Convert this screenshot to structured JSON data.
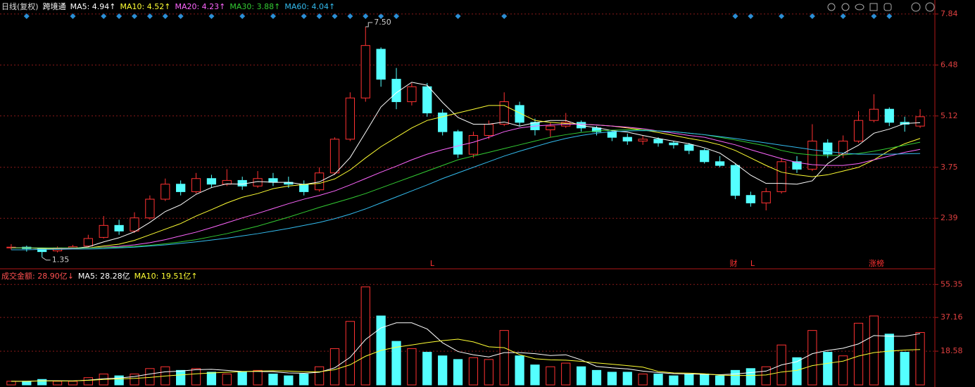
{
  "chart_data": [
    {
      "type": "candlestick",
      "title": "日线(复权)",
      "subtitle": "跨境通",
      "up_color": "#ff3232",
      "down_color": "#54ffff",
      "open": [
        1.6,
        1.62,
        1.58,
        1.52,
        1.6,
        1.65,
        1.88,
        2.2,
        2.05,
        2.4,
        2.9,
        3.3,
        3.1,
        3.45,
        3.3,
        3.4,
        3.25,
        3.45,
        3.35,
        3.3,
        3.15,
        3.6,
        4.5,
        5.6,
        6.9,
        6.1,
        5.5,
        5.9,
        5.2,
        4.7,
        4.1,
        4.6,
        4.9,
        5.4,
        4.95,
        4.75,
        4.85,
        4.95,
        4.8,
        4.7,
        4.55,
        4.45,
        4.5,
        4.4,
        4.35,
        4.2,
        3.9,
        3.8,
        3.0,
        2.8,
        3.1,
        3.9,
        3.7,
        4.4,
        4.1,
        4.45,
        5.0,
        5.3,
        4.95,
        4.85
      ],
      "close": [
        1.62,
        1.58,
        1.5,
        1.6,
        1.63,
        1.85,
        2.2,
        2.05,
        2.4,
        2.9,
        3.3,
        3.1,
        3.45,
        3.3,
        3.4,
        3.25,
        3.45,
        3.35,
        3.3,
        3.1,
        3.6,
        4.5,
        5.6,
        7.0,
        6.1,
        5.5,
        5.9,
        5.2,
        4.7,
        4.1,
        4.6,
        4.9,
        5.5,
        4.95,
        4.75,
        4.85,
        4.95,
        4.8,
        4.7,
        4.55,
        4.45,
        4.5,
        4.4,
        4.35,
        4.2,
        3.9,
        3.8,
        3.0,
        2.8,
        3.1,
        3.9,
        3.7,
        4.45,
        4.1,
        4.45,
        5.0,
        5.3,
        4.95,
        4.9,
        5.1
      ],
      "low": [
        1.55,
        1.5,
        1.35,
        1.48,
        1.57,
        1.62,
        1.85,
        1.95,
        2.0,
        2.35,
        2.85,
        3.0,
        3.05,
        3.2,
        3.25,
        3.15,
        3.2,
        3.25,
        3.2,
        3.0,
        3.1,
        3.55,
        4.45,
        5.5,
        5.9,
        5.3,
        5.4,
        5.1,
        4.6,
        4.0,
        4.0,
        4.5,
        4.85,
        4.85,
        4.6,
        4.55,
        4.8,
        4.7,
        4.6,
        4.45,
        4.35,
        4.35,
        4.3,
        4.25,
        4.1,
        3.85,
        3.75,
        2.9,
        2.7,
        2.6,
        3.05,
        3.6,
        3.65,
        4.0,
        4.0,
        4.4,
        4.95,
        4.85,
        4.7,
        4.8
      ],
      "high": [
        1.7,
        1.66,
        1.6,
        1.64,
        1.68,
        1.95,
        2.45,
        2.35,
        2.55,
        3.0,
        3.45,
        3.4,
        3.6,
        3.55,
        3.7,
        3.5,
        3.65,
        3.6,
        3.5,
        3.4,
        3.75,
        4.55,
        5.75,
        7.5,
        6.95,
        6.4,
        6.0,
        6.0,
        5.3,
        4.75,
        4.7,
        5.0,
        5.75,
        5.5,
        5.05,
        4.95,
        5.2,
        5.0,
        4.85,
        4.75,
        4.65,
        4.6,
        4.55,
        4.45,
        4.4,
        4.25,
        4.05,
        3.85,
        3.1,
        3.2,
        4.0,
        4.05,
        4.9,
        4.5,
        4.6,
        5.25,
        5.7,
        5.35,
        5.1,
        5.3
      ],
      "annotations": [
        {
          "text": "7.50",
          "value": 7.5
        },
        {
          "text": "1.35",
          "value": 1.35
        }
      ],
      "event_labels": [
        "L",
        "财",
        "L",
        "涨榜"
      ],
      "ylim": [
        1.08,
        8.12
      ],
      "yticks": [
        7.84,
        6.48,
        5.12,
        3.75,
        2.39
      ],
      "grid": true,
      "series": [
        {
          "name": "MA5: 4.94↑",
          "color": "#ffffff",
          "values": [
            1.6,
            1.6,
            1.58,
            1.58,
            1.59,
            1.63,
            1.76,
            1.87,
            2.03,
            2.28,
            2.57,
            2.75,
            3.03,
            3.21,
            3.31,
            3.3,
            3.37,
            3.35,
            3.35,
            3.29,
            3.36,
            3.57,
            4.01,
            4.68,
            5.36,
            5.74,
            6.02,
            5.94,
            5.48,
            5.08,
            4.9,
            4.9,
            4.96,
            4.85,
            4.94,
            5.0,
            5.0,
            4.86,
            4.81,
            4.73,
            4.69,
            4.6,
            4.52,
            4.45,
            4.38,
            4.27,
            4.13,
            3.85,
            3.54,
            3.32,
            3.32,
            3.3,
            3.39,
            3.85,
            4.12,
            4.34,
            4.66,
            4.77,
            4.92,
            4.94
          ]
        },
        {
          "name": "MA10: 4.52↑",
          "color": "#ffff33",
          "values": [
            1.6,
            1.6,
            1.59,
            1.58,
            1.58,
            1.6,
            1.65,
            1.7,
            1.8,
            1.95,
            2.1,
            2.25,
            2.45,
            2.62,
            2.8,
            2.95,
            3.05,
            3.18,
            3.25,
            3.29,
            3.32,
            3.44,
            3.68,
            4.0,
            4.3,
            4.55,
            4.8,
            5.0,
            5.1,
            5.2,
            5.3,
            5.4,
            5.4,
            5.2,
            5.0,
            4.95,
            4.92,
            4.9,
            4.88,
            4.85,
            4.8,
            4.75,
            4.68,
            4.6,
            4.52,
            4.45,
            4.35,
            4.2,
            4.0,
            3.8,
            3.62,
            3.55,
            3.5,
            3.55,
            3.65,
            3.75,
            3.95,
            4.2,
            4.38,
            4.52
          ]
        },
        {
          "name": "MA20: 4.23↑",
          "color": "#ff66ff",
          "values": [
            1.6,
            1.6,
            1.6,
            1.59,
            1.59,
            1.6,
            1.62,
            1.64,
            1.68,
            1.74,
            1.82,
            1.92,
            2.02,
            2.14,
            2.27,
            2.4,
            2.52,
            2.65,
            2.78,
            2.9,
            3.0,
            3.12,
            3.28,
            3.45,
            3.62,
            3.78,
            3.95,
            4.1,
            4.22,
            4.32,
            4.42,
            4.55,
            4.7,
            4.8,
            4.85,
            4.88,
            4.9,
            4.9,
            4.88,
            4.85,
            4.82,
            4.78,
            4.72,
            4.66,
            4.6,
            4.55,
            4.45,
            4.35,
            4.22,
            4.1,
            3.98,
            3.88,
            3.82,
            3.8,
            3.8,
            3.85,
            3.95,
            4.05,
            4.15,
            4.23
          ]
        },
        {
          "name": "MA30: 3.88↑",
          "color": "#33cc33",
          "values": [
            1.6,
            1.6,
            1.6,
            1.6,
            1.6,
            1.6,
            1.61,
            1.62,
            1.64,
            1.67,
            1.71,
            1.76,
            1.82,
            1.9,
            1.98,
            2.08,
            2.18,
            2.3,
            2.42,
            2.55,
            2.68,
            2.8,
            2.92,
            3.05,
            3.2,
            3.35,
            3.5,
            3.65,
            3.8,
            3.95,
            4.05,
            4.15,
            4.25,
            4.35,
            4.45,
            4.55,
            4.62,
            4.68,
            4.72,
            4.74,
            4.75,
            4.75,
            4.72,
            4.7,
            4.66,
            4.62,
            4.55,
            4.48,
            4.4,
            4.32,
            4.2,
            4.12,
            4.08,
            4.06,
            4.08,
            4.12,
            4.18,
            4.26,
            4.34,
            4.42
          ]
        },
        {
          "name": "MA60: 4.04↑",
          "color": "#33bbee",
          "values": [
            1.55,
            1.55,
            1.56,
            1.56,
            1.57,
            1.57,
            1.58,
            1.6,
            1.62,
            1.65,
            1.68,
            1.72,
            1.76,
            1.81,
            1.86,
            1.92,
            1.98,
            2.05,
            2.12,
            2.2,
            2.28,
            2.38,
            2.5,
            2.64,
            2.8,
            2.96,
            3.12,
            3.28,
            3.45,
            3.6,
            3.75,
            3.9,
            4.05,
            4.18,
            4.3,
            4.42,
            4.52,
            4.6,
            4.66,
            4.7,
            4.72,
            4.73,
            4.72,
            4.7,
            4.66,
            4.62,
            4.57,
            4.52,
            4.46,
            4.4,
            4.34,
            4.28,
            4.22,
            4.17,
            4.13,
            4.1,
            4.1,
            4.1,
            4.11,
            4.12
          ]
        }
      ]
    },
    {
      "type": "bar",
      "title": "成交金额: 28.90亿↓",
      "values": [
        2,
        2,
        3,
        2,
        2,
        4,
        6,
        5,
        6,
        9,
        10,
        8,
        9,
        7,
        6,
        7,
        8,
        6,
        5,
        6,
        10,
        20,
        35,
        54,
        38,
        24,
        20,
        18,
        16,
        14,
        15,
        14,
        30,
        16,
        11,
        10,
        12,
        10,
        8,
        7,
        7,
        6,
        6,
        5,
        6,
        6,
        5,
        8,
        9,
        10,
        22,
        15,
        30,
        18,
        16,
        34,
        38,
        28,
        18,
        28.9
      ],
      "ylim": [
        0,
        63.6
      ],
      "yticks": [
        55.35,
        37.16,
        18.58
      ],
      "grid": true,
      "series": [
        {
          "name": "MA5: 28.28亿",
          "color": "#ffffff",
          "values": [
            2,
            2,
            2.3,
            2.3,
            2.2,
            2.6,
            3.4,
            3.8,
            4.6,
            6,
            7.2,
            7.6,
            8.4,
            8.6,
            8,
            7.4,
            7.4,
            7.2,
            6.6,
            6.4,
            7,
            9.4,
            15.2,
            25,
            31.4,
            34.2,
            34.2,
            30.8,
            23.2,
            18.4,
            16.6,
            15.4,
            17.8,
            17.8,
            17.2,
            16.2,
            16.6,
            13.8,
            10.2,
            9.4,
            8.8,
            7.6,
            6.8,
            6.2,
            6,
            5.8,
            5.6,
            6,
            6.8,
            7.6,
            11,
            12.8,
            17.2,
            19,
            20.2,
            22.6,
            27.2,
            26.8,
            26.8,
            28.28
          ]
        },
        {
          "name": "MA10: 19.51亿↑",
          "color": "#ffff33",
          "values": [
            2,
            2,
            2.2,
            2.2,
            2.2,
            2.5,
            3,
            3.3,
            3.6,
            4.1,
            4.9,
            5.5,
            6.1,
            6.6,
            7,
            7.3,
            7.6,
            7.8,
            7.6,
            7.2,
            7.2,
            8.4,
            11.1,
            15.8,
            19,
            20.8,
            22,
            23.3,
            24.4,
            25.2,
            23.7,
            21,
            20.5,
            16.7,
            14.4,
            13.8,
            13.6,
            13,
            12.1,
            11.4,
            10.6,
            9.8,
            7.4,
            6.6,
            6.5,
            6.1,
            5.4,
            5.2,
            5.2,
            5.5,
            7.1,
            8,
            10.6,
            11.9,
            13.1,
            15.9,
            17.8,
            18.6,
            19.2,
            19.51
          ]
        }
      ]
    }
  ]
}
